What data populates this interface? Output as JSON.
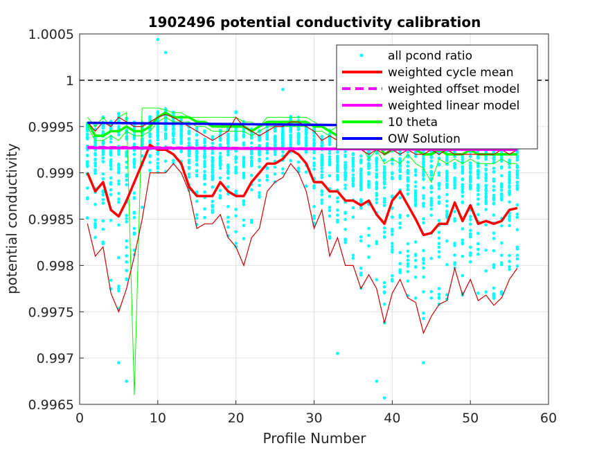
{
  "chart_data": {
    "type": "line",
    "title": "1902496 potential conductivity calibration",
    "xlabel": "Profile Number",
    "ylabel": "potential conductivity",
    "xlim": [
      0,
      60
    ],
    "ylim": [
      0.9965,
      1.0005
    ],
    "xticks": [
      0,
      10,
      20,
      30,
      40,
      50,
      60
    ],
    "xtick_labels": [
      "0",
      "10",
      "20",
      "30",
      "40",
      "50",
      "60"
    ],
    "yticks": [
      0.9965,
      0.997,
      0.9975,
      0.998,
      0.9985,
      0.999,
      0.9995,
      1.0,
      1.0005
    ],
    "ytick_labels": [
      "0.9965",
      "0.997",
      "0.9975",
      "0.998",
      "0.9985",
      "0.999",
      "0.9995",
      "1",
      "1.0005"
    ],
    "grid": true,
    "legend_position": "top-right",
    "legend": [
      {
        "label": "all pcond ratio",
        "color": "#00ffff",
        "style": "dot"
      },
      {
        "label": "weighted cycle mean",
        "color": "#ff0000",
        "style": "solid"
      },
      {
        "label": "weighted offset model",
        "color": "#ff00ff",
        "style": "dashed"
      },
      {
        "label": "weighted linear model",
        "color": "#ff00ff",
        "style": "solid"
      },
      {
        "label": "10 theta",
        "color": "#00ff00",
        "style": "solid"
      },
      {
        "label": "OW Solution",
        "color": "#0000ff",
        "style": "solid"
      }
    ],
    "colors": {
      "scatter": "#00ffff",
      "mean": "#ff0000",
      "envelope": "#cc0000",
      "model": "#ff00ff",
      "theta": "#00ff00",
      "ow": "#0000ff",
      "reference": "#000000"
    },
    "profiles": [
      1,
      2,
      3,
      4,
      5,
      6,
      7,
      8,
      9,
      10,
      11,
      12,
      13,
      14,
      15,
      16,
      17,
      18,
      19,
      20,
      21,
      22,
      23,
      24,
      25,
      26,
      27,
      28,
      29,
      30,
      31,
      32,
      33,
      34,
      35,
      36,
      37,
      38,
      39,
      40,
      41,
      42,
      43,
      44,
      45,
      46,
      47,
      48,
      49,
      50,
      51,
      52,
      53,
      54,
      55,
      56
    ],
    "series": [
      {
        "name": "weighted cycle mean",
        "values": [
          0.999,
          0.9988,
          0.9989,
          0.9986,
          0.99853,
          0.9987,
          0.9989,
          0.9991,
          0.9993,
          0.99925,
          0.99925,
          0.9992,
          0.9991,
          0.99885,
          0.99875,
          0.99875,
          0.99875,
          0.9989,
          0.9988,
          0.99875,
          0.99875,
          0.9989,
          0.999,
          0.9991,
          0.9991,
          0.99915,
          0.99925,
          0.9992,
          0.9991,
          0.9989,
          0.9989,
          0.9988,
          0.9988,
          0.9987,
          0.9987,
          0.99865,
          0.9987,
          0.99855,
          0.99845,
          0.9987,
          0.9988,
          0.99865,
          0.9985,
          0.99833,
          0.99835,
          0.99845,
          0.99845,
          0.99868,
          0.99848,
          0.99865,
          0.99845,
          0.99848,
          0.99845,
          0.99848,
          0.9986,
          0.99862
        ]
      },
      {
        "name": "lower envelope",
        "values": [
          0.99845,
          0.9981,
          0.9982,
          0.9977,
          0.9975,
          0.99775,
          0.9981,
          0.9985,
          0.999,
          0.999,
          0.999,
          0.9991,
          0.999,
          0.9988,
          0.9984,
          0.99845,
          0.99845,
          0.99855,
          0.9983,
          0.9982,
          0.998,
          0.9983,
          0.9984,
          0.9988,
          0.9989,
          0.99895,
          0.9991,
          0.999,
          0.9988,
          0.9984,
          0.9986,
          0.9981,
          0.9983,
          0.998,
          0.998,
          0.99775,
          0.9979,
          0.99775,
          0.99738,
          0.9977,
          0.99785,
          0.99765,
          0.9976,
          0.99727,
          0.99745,
          0.99758,
          0.99762,
          0.99797,
          0.99768,
          0.99785,
          0.99762,
          0.99768,
          0.99757,
          0.99765,
          0.99785,
          0.99797
        ]
      },
      {
        "name": "upper envelope",
        "values": [
          0.99955,
          0.99945,
          0.99955,
          0.9995,
          0.9996,
          0.99955,
          0.9995,
          0.9995,
          0.99955,
          0.9996,
          0.99963,
          0.9996,
          0.99955,
          0.9995,
          0.99945,
          0.9994,
          0.99935,
          0.9994,
          0.99945,
          0.9996,
          0.9995,
          0.99945,
          0.9994,
          0.99945,
          0.9995,
          0.9995,
          0.99955,
          0.99955,
          0.9995,
          0.99945,
          0.99935,
          0.9994,
          0.99935,
          0.9993,
          0.9993,
          0.99925,
          0.9992,
          0.99925,
          0.9992,
          0.99925,
          0.9992,
          0.99925,
          0.9992,
          0.9992,
          0.99925,
          0.9992,
          0.99925,
          0.9992,
          0.9992,
          0.9992,
          0.9992,
          0.9992,
          0.9992,
          0.99925,
          0.9992,
          0.99925
        ]
      },
      {
        "name": "10 theta",
        "values": [
          0.99955,
          0.9994,
          0.9994,
          0.99945,
          0.99945,
          0.9995,
          0.99945,
          0.99945,
          0.9995,
          0.9996,
          0.99965,
          0.9996,
          0.9996,
          0.9996,
          0.99955,
          0.99955,
          0.9995,
          0.9995,
          0.9995,
          0.9995,
          0.9995,
          0.99945,
          0.9995,
          0.99955,
          0.99955,
          0.99955,
          0.99955,
          0.99955,
          0.99955,
          0.9995,
          0.9995,
          0.99945,
          0.9994,
          0.9994,
          0.9994,
          0.9994,
          0.9993,
          0.99935,
          0.9992,
          0.99925,
          0.99925,
          0.9993,
          0.99925,
          0.9992,
          0.9992,
          0.99925,
          0.9992,
          0.9992,
          0.9992,
          0.99925,
          0.9992,
          0.9992,
          0.9992,
          0.9992,
          0.9992,
          0.9992
        ]
      },
      {
        "name": "10 theta upper",
        "values": [
          0.9996,
          0.9995,
          0.9996,
          0.9995,
          0.9996,
          0.99965,
          0.9966,
          0.9997,
          0.9997,
          0.9997,
          0.99968,
          0.99965,
          0.99965,
          0.9996,
          0.9996,
          0.9996,
          0.9996,
          0.9996,
          0.9996,
          0.9996,
          0.99955,
          0.99955,
          0.9995,
          0.9996,
          0.9996,
          0.9996,
          0.9996,
          0.9996,
          0.9996,
          0.99955,
          0.9995,
          0.99945,
          0.9995,
          0.99945,
          0.99945,
          0.9994,
          0.9994,
          0.99945,
          0.99935,
          0.9994,
          0.9993,
          0.9994,
          0.9993,
          0.9993,
          0.99935,
          0.9994,
          0.9993,
          0.9993,
          0.99935,
          0.9993,
          0.99925,
          0.9993,
          0.99925,
          0.99928,
          0.99925,
          0.99925
        ]
      },
      {
        "name": "10 theta lower",
        "values": [
          0.9995,
          0.99935,
          0.99935,
          0.9994,
          0.99935,
          0.99945,
          0.9994,
          0.9994,
          0.99945,
          0.99955,
          0.9996,
          0.99955,
          0.99955,
          0.99955,
          0.9995,
          0.9995,
          0.99945,
          0.99945,
          0.99945,
          0.99945,
          0.99945,
          0.9994,
          0.99945,
          0.9995,
          0.9995,
          0.9995,
          0.9995,
          0.9995,
          0.9995,
          0.99945,
          0.99945,
          0.9994,
          0.99935,
          0.99935,
          0.99935,
          0.9993,
          0.99915,
          0.99925,
          0.9991,
          0.99915,
          0.9991,
          0.9992,
          0.9991,
          0.99905,
          0.9989,
          0.99915,
          0.9991,
          0.99915,
          0.9991,
          0.99915,
          0.9991,
          0.9991,
          0.9991,
          0.99915,
          0.9991,
          0.9991
        ]
      }
    ],
    "reference_line": 1.0,
    "ow_solution": [
      {
        "x": 1,
        "y": 0.99954
      },
      {
        "x": 56,
        "y": 0.9995
      }
    ],
    "offset_model": [
      {
        "x": 1,
        "y": 0.99928
      },
      {
        "x": 56,
        "y": 0.99925
      }
    ],
    "linear_model": [
      {
        "x": 1,
        "y": 0.99927
      },
      {
        "x": 56,
        "y": 0.99925
      }
    ],
    "scatter_outliers": [
      {
        "x": 10,
        "y": 1.00044
      },
      {
        "x": 11,
        "y": 1.0003
      },
      {
        "x": 26,
        "y": 0.9999
      },
      {
        "x": 6,
        "y": 0.99675
      },
      {
        "x": 39,
        "y": 0.99657
      },
      {
        "x": 5,
        "y": 0.99695
      },
      {
        "x": 33,
        "y": 0.99705
      },
      {
        "x": 38,
        "y": 0.99675
      },
      {
        "x": 44,
        "y": 0.99695
      }
    ]
  }
}
